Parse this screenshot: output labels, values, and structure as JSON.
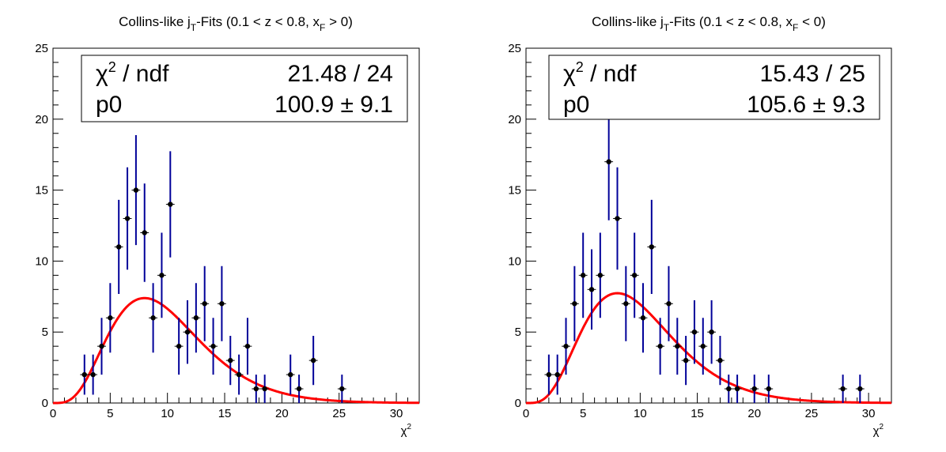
{
  "chart_data": [
    {
      "type": "scatter",
      "title": "Collins-like jT-Fits (0.1 < z < 0.8, xF > 0)",
      "title_parts": {
        "pre": "Collins-like j",
        "sub1": "T",
        "mid": "-Fits (0.1 < z < 0.8, x",
        "sub2": "F",
        "post": " > 0)"
      },
      "xlabel": "χ",
      "xlabel_sup": "2",
      "xlim": [
        0,
        32
      ],
      "ylim": [
        0,
        25
      ],
      "x_ticks": [
        "0",
        "5",
        "10",
        "15",
        "20",
        "25",
        "30"
      ],
      "y_ticks": [
        "0",
        "5",
        "10",
        "15",
        "20",
        "25"
      ],
      "stats": {
        "row1_label": "χ",
        "row1_label_sup": "2",
        "row1_label_post": " / ndf",
        "row1_value": "21.48 / 24",
        "row2_label": "p0",
        "row2_value": "100.9 ± 9.1"
      },
      "x": [
        2.75,
        3.5,
        4.25,
        5.0,
        5.75,
        6.5,
        7.25,
        8.0,
        8.75,
        9.5,
        10.25,
        11.0,
        11.75,
        12.5,
        13.25,
        14.0,
        14.75,
        15.5,
        16.25,
        17.0,
        17.75,
        18.5,
        20.75,
        21.5,
        22.75,
        25.25
      ],
      "y": [
        2,
        2,
        4,
        6,
        11,
        13,
        15,
        12,
        6,
        9,
        14,
        4,
        5,
        6,
        7,
        4,
        7,
        3,
        2,
        4,
        1,
        1,
        2,
        1,
        3,
        1
      ],
      "fit": {
        "name": "fit",
        "p0": 100.9,
        "mean": 8.0,
        "color": "#ff0000"
      },
      "colors": {
        "errorbar": "#000099",
        "marker": "#000000"
      }
    },
    {
      "type": "scatter",
      "title": "Collins-like jT-Fits (0.1 < z < 0.8, xF < 0)",
      "title_parts": {
        "pre": "Collins-like j",
        "sub1": "T",
        "mid": "-Fits (0.1 < z < 0.8, x",
        "sub2": "F",
        "post": " < 0)"
      },
      "xlabel": "χ",
      "xlabel_sup": "2",
      "xlim": [
        0,
        32
      ],
      "ylim": [
        0,
        25
      ],
      "x_ticks": [
        "0",
        "5",
        "10",
        "15",
        "20",
        "25",
        "30"
      ],
      "y_ticks": [
        "0",
        "5",
        "10",
        "15",
        "20",
        "25"
      ],
      "stats": {
        "row1_label": "χ",
        "row1_label_sup": "2",
        "row1_label_post": " / ndf",
        "row1_value": "15.43 / 25",
        "row2_label": "p0",
        "row2_value": "105.6 ± 9.3"
      },
      "x": [
        2.0,
        2.75,
        3.5,
        4.25,
        5.0,
        5.75,
        6.5,
        7.25,
        8.0,
        8.75,
        9.5,
        10.25,
        11.0,
        11.75,
        12.5,
        13.25,
        14.0,
        14.75,
        15.5,
        16.25,
        17.0,
        17.75,
        18.5,
        20.0,
        21.25,
        27.75,
        29.25
      ],
      "y": [
        2,
        2,
        4,
        7,
        9,
        8,
        9,
        17,
        13,
        7,
        9,
        6,
        11,
        4,
        7,
        4,
        3,
        5,
        4,
        5,
        3,
        1,
        1,
        1,
        1,
        1,
        1
      ],
      "fit": {
        "name": "fit",
        "p0": 105.6,
        "mean": 8.0,
        "color": "#ff0000"
      },
      "colors": {
        "errorbar": "#000099",
        "marker": "#000000"
      }
    }
  ]
}
